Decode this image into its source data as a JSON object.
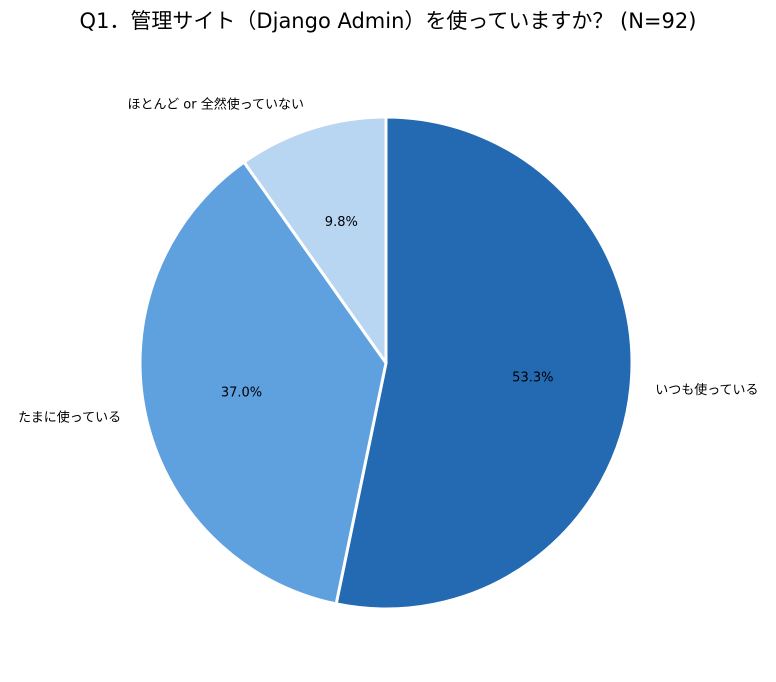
{
  "chart_data": {
    "type": "pie",
    "title": "Q1．管理サイト（Django Admin）を使っていますか？ (N=92)",
    "categories": [
      "いつも使っている",
      "たまに使っている",
      "ほとんど or 全然使っていない"
    ],
    "values": [
      53.3,
      37.0,
      9.8
    ],
    "value_labels": [
      "53.3%",
      "37.0%",
      "9.8%"
    ],
    "colors": [
      "#236AB2",
      "#5FA0DE",
      "#B8D5F2"
    ],
    "start_angle": "12 o'clock",
    "direction": "clockwise",
    "legend": "none"
  }
}
